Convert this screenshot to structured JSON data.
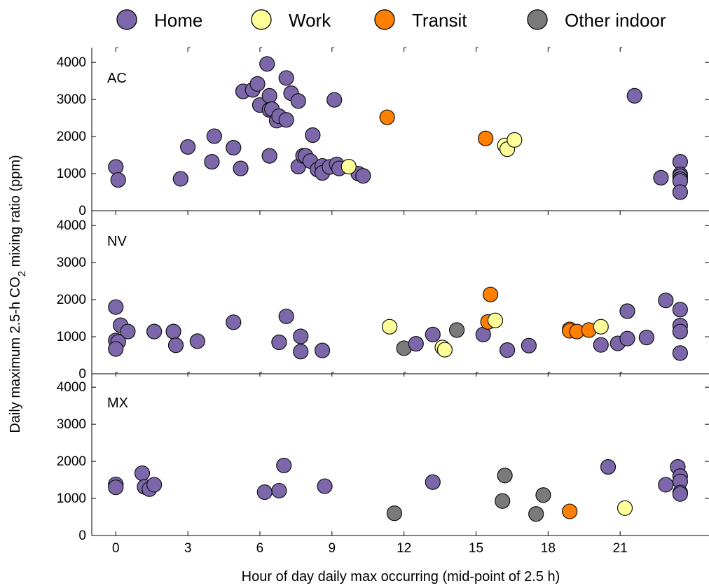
{
  "chart_data": {
    "type": "scatter",
    "xlabel": "Hour of day daily max occurring (mid-point of 2.5 h)",
    "ylabel_prefix": "Daily maximum 2.5-h CO",
    "ylabel_sub": "2",
    "ylabel_suffix": " mixing ratio (ppm)",
    "xlim": [
      -1,
      24.7
    ],
    "ylim": [
      0,
      4400
    ],
    "x_ticks": [
      0,
      3,
      6,
      9,
      12,
      15,
      18,
      21
    ],
    "x_tick_labels": [
      "0",
      "3",
      "6",
      "9",
      "12",
      "15",
      "18",
      "21"
    ],
    "y_ticks": [
      0,
      1000,
      2000,
      3000,
      4000
    ],
    "y_tick_labels": [
      "0",
      "1000",
      "2000",
      "3000",
      "4000"
    ],
    "grid": false,
    "legend_position": "top",
    "categories": [
      {
        "key": "home",
        "name": "Home",
        "color": "#7b67aa"
      },
      {
        "key": "work",
        "name": "Work",
        "color": "#ffff99"
      },
      {
        "key": "transit",
        "name": "Transit",
        "color": "#ff7f00"
      },
      {
        "key": "other",
        "name": "Other indoor",
        "color": "#7a7a7a"
      }
    ],
    "panels": [
      {
        "label": "AC",
        "points": [
          {
            "cat": "home",
            "x": 0,
            "y": 1180
          },
          {
            "cat": "home",
            "x": 0.1,
            "y": 830
          },
          {
            "cat": "home",
            "x": 2.7,
            "y": 860
          },
          {
            "cat": "home",
            "x": 3,
            "y": 1720
          },
          {
            "cat": "home",
            "x": 4,
            "y": 1320
          },
          {
            "cat": "home",
            "x": 4.1,
            "y": 2010
          },
          {
            "cat": "home",
            "x": 4.9,
            "y": 1700
          },
          {
            "cat": "home",
            "x": 5.2,
            "y": 1140
          },
          {
            "cat": "home",
            "x": 5.3,
            "y": 3220
          },
          {
            "cat": "home",
            "x": 5.7,
            "y": 3260
          },
          {
            "cat": "home",
            "x": 5.9,
            "y": 3420
          },
          {
            "cat": "home",
            "x": 6,
            "y": 2850
          },
          {
            "cat": "home",
            "x": 6.3,
            "y": 3960
          },
          {
            "cat": "home",
            "x": 6.4,
            "y": 3100
          },
          {
            "cat": "home",
            "x": 6.4,
            "y": 1480
          },
          {
            "cat": "home",
            "x": 6.4,
            "y": 2720
          },
          {
            "cat": "home",
            "x": 6.5,
            "y": 2740
          },
          {
            "cat": "home",
            "x": 6.7,
            "y": 2430
          },
          {
            "cat": "home",
            "x": 6.8,
            "y": 2550
          },
          {
            "cat": "home",
            "x": 7.1,
            "y": 3580
          },
          {
            "cat": "home",
            "x": 7.1,
            "y": 2450
          },
          {
            "cat": "home",
            "x": 7.3,
            "y": 3170
          },
          {
            "cat": "home",
            "x": 7.6,
            "y": 2960
          },
          {
            "cat": "home",
            "x": 7.6,
            "y": 1190
          },
          {
            "cat": "home",
            "x": 7.8,
            "y": 1480
          },
          {
            "cat": "home",
            "x": 7.9,
            "y": 1480
          },
          {
            "cat": "home",
            "x": 8.1,
            "y": 1340
          },
          {
            "cat": "home",
            "x": 8.2,
            "y": 2040
          },
          {
            "cat": "home",
            "x": 8.4,
            "y": 1110
          },
          {
            "cat": "home",
            "x": 8.6,
            "y": 1210
          },
          {
            "cat": "home",
            "x": 8.6,
            "y": 1020
          },
          {
            "cat": "home",
            "x": 8.9,
            "y": 1180
          },
          {
            "cat": "home",
            "x": 9.1,
            "y": 2990
          },
          {
            "cat": "home",
            "x": 9.2,
            "y": 1250
          },
          {
            "cat": "home",
            "x": 9.3,
            "y": 1140
          },
          {
            "cat": "home",
            "x": 10.1,
            "y": 1000
          },
          {
            "cat": "home",
            "x": 10.3,
            "y": 940
          },
          {
            "cat": "work",
            "x": 9.7,
            "y": 1190
          },
          {
            "cat": "transit",
            "x": 11.3,
            "y": 2520
          },
          {
            "cat": "transit",
            "x": 15.4,
            "y": 1950
          },
          {
            "cat": "work",
            "x": 16.2,
            "y": 1760
          },
          {
            "cat": "work",
            "x": 16.3,
            "y": 1660
          },
          {
            "cat": "work",
            "x": 16.6,
            "y": 1910
          },
          {
            "cat": "home",
            "x": 21.6,
            "y": 3100
          },
          {
            "cat": "home",
            "x": 22.7,
            "y": 890
          },
          {
            "cat": "home",
            "x": 23.5,
            "y": 1320
          },
          {
            "cat": "home",
            "x": 23.5,
            "y": 980
          },
          {
            "cat": "home",
            "x": 23.5,
            "y": 930
          },
          {
            "cat": "home",
            "x": 23.5,
            "y": 850
          },
          {
            "cat": "home",
            "x": 23.5,
            "y": 800
          },
          {
            "cat": "home",
            "x": 23.5,
            "y": 500
          }
        ]
      },
      {
        "label": "NV",
        "points": [
          {
            "cat": "home",
            "x": 0,
            "y": 1800
          },
          {
            "cat": "home",
            "x": 0.2,
            "y": 1310
          },
          {
            "cat": "home",
            "x": 0.5,
            "y": 1140
          },
          {
            "cat": "home",
            "x": 0,
            "y": 900
          },
          {
            "cat": "home",
            "x": 0.1,
            "y": 860
          },
          {
            "cat": "home",
            "x": 0,
            "y": 670
          },
          {
            "cat": "home",
            "x": 1.6,
            "y": 1140
          },
          {
            "cat": "home",
            "x": 2.4,
            "y": 1140
          },
          {
            "cat": "home",
            "x": 2.5,
            "y": 770
          },
          {
            "cat": "home",
            "x": 3.4,
            "y": 880
          },
          {
            "cat": "home",
            "x": 4.9,
            "y": 1390
          },
          {
            "cat": "home",
            "x": 6.8,
            "y": 850
          },
          {
            "cat": "home",
            "x": 7.1,
            "y": 1550
          },
          {
            "cat": "home",
            "x": 7.7,
            "y": 1010
          },
          {
            "cat": "home",
            "x": 7.7,
            "y": 600
          },
          {
            "cat": "home",
            "x": 8.6,
            "y": 630
          },
          {
            "cat": "work",
            "x": 11.4,
            "y": 1270
          },
          {
            "cat": "other",
            "x": 12,
            "y": 690
          },
          {
            "cat": "home",
            "x": 12.5,
            "y": 810
          },
          {
            "cat": "home",
            "x": 13.2,
            "y": 1060
          },
          {
            "cat": "work",
            "x": 13.6,
            "y": 710
          },
          {
            "cat": "work",
            "x": 13.7,
            "y": 650
          },
          {
            "cat": "other",
            "x": 14.2,
            "y": 1180
          },
          {
            "cat": "home",
            "x": 15.3,
            "y": 1060
          },
          {
            "cat": "transit",
            "x": 15.6,
            "y": 2140
          },
          {
            "cat": "transit",
            "x": 15.5,
            "y": 1400
          },
          {
            "cat": "work",
            "x": 15.8,
            "y": 1440
          },
          {
            "cat": "home",
            "x": 16.3,
            "y": 640
          },
          {
            "cat": "home",
            "x": 17.2,
            "y": 760
          },
          {
            "cat": "transit",
            "x": 18.9,
            "y": 1200
          },
          {
            "cat": "transit",
            "x": 18.9,
            "y": 1160
          },
          {
            "cat": "transit",
            "x": 19.2,
            "y": 1140
          },
          {
            "cat": "transit",
            "x": 19.7,
            "y": 1180
          },
          {
            "cat": "work",
            "x": 20.2,
            "y": 1270
          },
          {
            "cat": "home",
            "x": 20.2,
            "y": 780
          },
          {
            "cat": "home",
            "x": 20.9,
            "y": 820
          },
          {
            "cat": "home",
            "x": 21.3,
            "y": 1690
          },
          {
            "cat": "home",
            "x": 21.3,
            "y": 950
          },
          {
            "cat": "home",
            "x": 22.1,
            "y": 980
          },
          {
            "cat": "home",
            "x": 22.9,
            "y": 1980
          },
          {
            "cat": "home",
            "x": 23.5,
            "y": 1730
          },
          {
            "cat": "home",
            "x": 23.5,
            "y": 1300
          },
          {
            "cat": "home",
            "x": 23.5,
            "y": 1140
          },
          {
            "cat": "home",
            "x": 23.5,
            "y": 560
          }
        ]
      },
      {
        "label": "MX",
        "points": [
          {
            "cat": "home",
            "x": 0,
            "y": 1380
          },
          {
            "cat": "home",
            "x": 0,
            "y": 1300
          },
          {
            "cat": "home",
            "x": 1.1,
            "y": 1680
          },
          {
            "cat": "home",
            "x": 1.2,
            "y": 1310
          },
          {
            "cat": "home",
            "x": 1.4,
            "y": 1250
          },
          {
            "cat": "home",
            "x": 1.6,
            "y": 1370
          },
          {
            "cat": "home",
            "x": 6.2,
            "y": 1170
          },
          {
            "cat": "home",
            "x": 6.8,
            "y": 1210
          },
          {
            "cat": "home",
            "x": 7,
            "y": 1890
          },
          {
            "cat": "home",
            "x": 8.7,
            "y": 1330
          },
          {
            "cat": "other",
            "x": 11.6,
            "y": 600
          },
          {
            "cat": "home",
            "x": 13.2,
            "y": 1440
          },
          {
            "cat": "other",
            "x": 16.2,
            "y": 1620
          },
          {
            "cat": "other",
            "x": 16.1,
            "y": 930
          },
          {
            "cat": "other",
            "x": 17.5,
            "y": 580
          },
          {
            "cat": "other",
            "x": 17.8,
            "y": 1090
          },
          {
            "cat": "transit",
            "x": 18.9,
            "y": 650
          },
          {
            "cat": "home",
            "x": 20.5,
            "y": 1850
          },
          {
            "cat": "work",
            "x": 21.2,
            "y": 740
          },
          {
            "cat": "home",
            "x": 22.9,
            "y": 1370
          },
          {
            "cat": "home",
            "x": 23.4,
            "y": 1850
          },
          {
            "cat": "home",
            "x": 23.5,
            "y": 1600
          },
          {
            "cat": "home",
            "x": 23.5,
            "y": 1460
          },
          {
            "cat": "home",
            "x": 23.5,
            "y": 1160
          },
          {
            "cat": "home",
            "x": 23.5,
            "y": 1120
          }
        ]
      }
    ]
  }
}
